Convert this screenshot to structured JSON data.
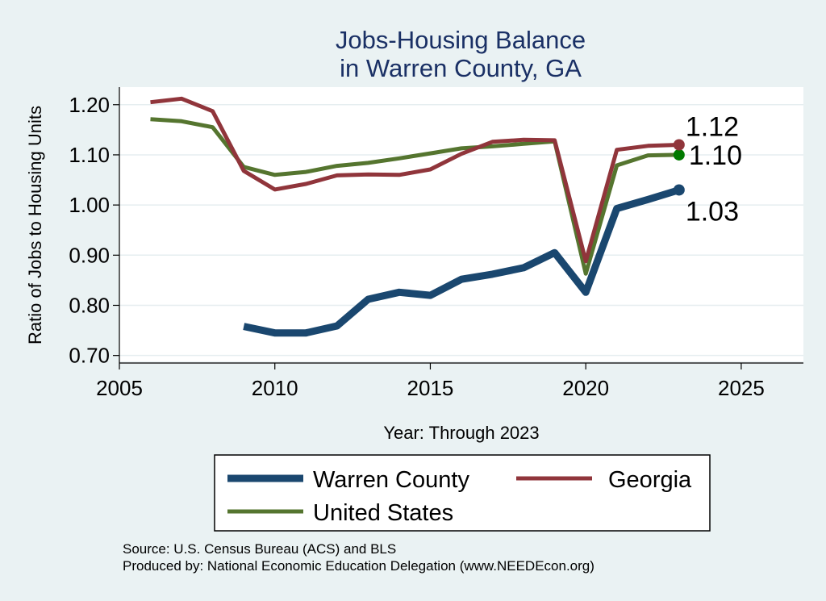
{
  "chart_data": {
    "type": "line",
    "title": [
      "Jobs-Housing Balance",
      "in Warren County, GA"
    ],
    "xlabel": "Year: Through 2023",
    "ylabel": "Ratio of Jobs to Housing Units",
    "xlim": [
      2005,
      2027
    ],
    "ylim": [
      0.685,
      1.235
    ],
    "x_ticks": [
      2005,
      2010,
      2015,
      2020,
      2025
    ],
    "x_tick_labels": [
      "2005",
      "2010",
      "2015",
      "2020",
      "2025"
    ],
    "y_ticks": [
      0.7,
      0.8,
      0.9,
      1.0,
      1.1,
      1.2
    ],
    "y_tick_labels": [
      "0.70",
      "0.80",
      "0.90",
      "1.00",
      "1.10",
      "1.20"
    ],
    "grid": true,
    "legend_position": "bottom",
    "series": [
      {
        "name": "Warren County",
        "color": "#1a476f",
        "x": [
          2009,
          2010,
          2011,
          2012,
          2013,
          2014,
          2015,
          2016,
          2017,
          2018,
          2019,
          2020,
          2021,
          2022,
          2023
        ],
        "values": [
          0.758,
          0.745,
          0.745,
          0.759,
          0.812,
          0.826,
          0.82,
          0.852,
          0.862,
          0.875,
          0.905,
          0.826,
          0.993,
          1.011,
          1.03
        ],
        "end_label": "1.03"
      },
      {
        "name": "Georgia",
        "color": "#90353b",
        "x": [
          2006,
          2007,
          2008,
          2009,
          2010,
          2011,
          2012,
          2013,
          2014,
          2015,
          2016,
          2017,
          2018,
          2019,
          2020,
          2021,
          2022,
          2023
        ],
        "values": [
          1.205,
          1.212,
          1.187,
          1.068,
          1.031,
          1.042,
          1.059,
          1.061,
          1.06,
          1.071,
          1.102,
          1.126,
          1.13,
          1.129,
          0.888,
          1.11,
          1.118,
          1.12
        ],
        "end_label": "1.12"
      },
      {
        "name": "United States",
        "color": "#55752f",
        "x": [
          2006,
          2007,
          2008,
          2009,
          2010,
          2011,
          2012,
          2013,
          2014,
          2015,
          2016,
          2017,
          2018,
          2019,
          2020,
          2021,
          2022,
          2023
        ],
        "values": [
          1.171,
          1.167,
          1.155,
          1.076,
          1.06,
          1.066,
          1.078,
          1.084,
          1.093,
          1.103,
          1.113,
          1.117,
          1.122,
          1.127,
          0.863,
          1.079,
          1.099,
          1.1
        ],
        "end_label": "1.10"
      }
    ],
    "end_marker_colors": {
      "Warren County": "#1a476f",
      "Georgia": "#90353b",
      "United States": "#007a00"
    }
  },
  "legend": {
    "items": [
      "Warren County",
      "Georgia",
      "United States"
    ]
  },
  "footer": {
    "source": "Source: U.S. Census Bureau (ACS) and BLS",
    "produced_by": "Produced by: National Economic Education Delegation (www.NEEDEcon.org)"
  }
}
